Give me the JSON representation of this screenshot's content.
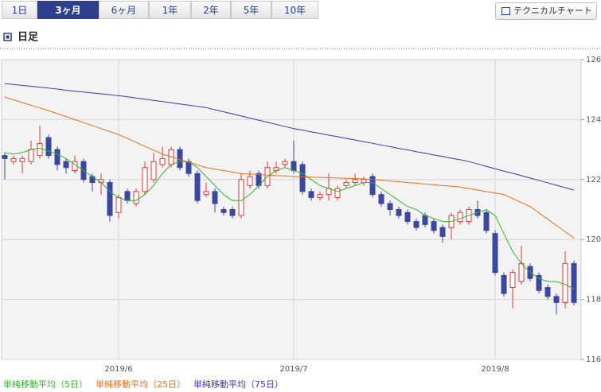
{
  "tabs": [
    "1日",
    "3ヶ月",
    "6ヶ月",
    "1年",
    "2年",
    "5年",
    "10年"
  ],
  "selected_tab": 1,
  "button": "テクニカルチャート",
  "chart_data": {
    "type": "candlestick",
    "title": "日足",
    "categories": [
      null,
      null,
      null,
      null,
      null,
      null,
      null,
      null,
      null,
      null,
      null,
      null,
      null,
      "2019/6",
      null,
      null,
      null,
      null,
      null,
      null,
      null,
      null,
      null,
      null,
      null,
      null,
      null,
      null,
      null,
      null,
      null,
      null,
      null,
      "2019/7",
      null,
      null,
      null,
      null,
      null,
      null,
      null,
      null,
      null,
      null,
      null,
      null,
      null,
      null,
      null,
      null,
      null,
      null,
      null,
      null,
      null,
      null,
      "2019/8",
      null,
      null,
      null,
      null,
      null,
      null,
      null,
      null,
      null
    ],
    "open": [
      122.8,
      122.6,
      122.6,
      122.6,
      122.8,
      123.4,
      123.0,
      122.6,
      122.3,
      122.6,
      122.1,
      121.9,
      121.9,
      120.9,
      121.6,
      121.2,
      121.6,
      122.0,
      122.5,
      122.5,
      123.0,
      122.6,
      122.2,
      121.5,
      121.6,
      121.0,
      121.0,
      120.8,
      121.8,
      122.2,
      121.8,
      122.3,
      122.5,
      122.6,
      122.5,
      121.6,
      121.4,
      121.5,
      121.4,
      121.8,
      121.9,
      121.9,
      122.1,
      121.5,
      121.2,
      121.0,
      120.9,
      120.6,
      120.8,
      120.6,
      120.4,
      120.4,
      120.6,
      120.6,
      121.0,
      120.9,
      120.2,
      118.8,
      118.4,
      118.6,
      119.1,
      118.8,
      118.4,
      118.1,
      117.9,
      119.2
    ],
    "high": [
      122.9,
      122.8,
      122.8,
      123.3,
      123.8,
      123.5,
      123.1,
      122.7,
      122.8,
      122.7,
      122.2,
      122.2,
      122.0,
      121.5,
      121.7,
      121.7,
      122.6,
      122.9,
      123.1,
      123.1,
      123.1,
      122.7,
      122.3,
      121.9,
      121.7,
      121.1,
      121.1,
      122.2,
      122.3,
      122.3,
      122.6,
      122.6,
      122.7,
      123.3,
      122.6,
      121.7,
      121.6,
      122.2,
      121.8,
      122.0,
      122.2,
      122.1,
      122.2,
      121.6,
      121.3,
      121.1,
      121.0,
      120.7,
      120.9,
      120.7,
      120.5,
      120.9,
      121.0,
      121.1,
      121.3,
      121.0,
      120.3,
      118.9,
      119.0,
      119.8,
      119.2,
      118.9,
      118.5,
      118.2,
      119.6,
      119.3
    ],
    "low": [
      122.0,
      122.5,
      122.2,
      122.5,
      122.7,
      122.7,
      122.3,
      122.2,
      122.2,
      121.9,
      121.6,
      121.5,
      120.6,
      120.7,
      121.2,
      121.1,
      121.5,
      121.9,
      122.4,
      122.4,
      122.3,
      122.1,
      121.2,
      121.4,
      120.9,
      120.8,
      120.7,
      120.7,
      121.7,
      121.7,
      121.7,
      122.2,
      122.4,
      122.2,
      121.5,
      121.3,
      121.3,
      121.3,
      121.3,
      121.7,
      121.8,
      121.8,
      121.4,
      121.1,
      120.8,
      120.7,
      120.5,
      120.3,
      120.4,
      120.2,
      119.9,
      120.0,
      120.5,
      120.5,
      120.7,
      120.2,
      118.8,
      118.1,
      117.7,
      118.5,
      118.6,
      118.2,
      118.0,
      117.5,
      117.7,
      117.8
    ],
    "close": [
      122.7,
      122.7,
      122.7,
      123.0,
      123.2,
      122.8,
      122.5,
      122.4,
      122.6,
      122.0,
      121.9,
      122.0,
      120.8,
      121.4,
      121.3,
      121.6,
      122.4,
      122.6,
      122.7,
      123.0,
      122.4,
      122.2,
      121.3,
      121.6,
      121.2,
      120.9,
      120.8,
      122.0,
      122.1,
      121.8,
      122.4,
      122.4,
      122.6,
      122.3,
      121.6,
      121.4,
      121.5,
      121.7,
      121.7,
      121.9,
      122.0,
      122.0,
      121.5,
      121.2,
      121.0,
      120.8,
      120.6,
      120.4,
      120.5,
      120.3,
      120.1,
      120.8,
      120.9,
      121.0,
      120.8,
      120.3,
      118.9,
      118.2,
      118.9,
      119.2,
      118.7,
      118.3,
      118.1,
      117.9,
      119.2,
      117.9
    ],
    "up_color": "#e2383a",
    "down_color": "#3c479f",
    "series": [
      {
        "name": "単純移動平均（5日）",
        "color": "#36b52f",
        "values": [
          122.9,
          122.85,
          122.9,
          123.0,
          123.05,
          122.95,
          122.85,
          122.7,
          122.5,
          122.3,
          122.1,
          121.9,
          121.6,
          121.4,
          121.3,
          121.3,
          121.5,
          121.8,
          122.2,
          122.5,
          122.6,
          122.6,
          122.4,
          122.1,
          121.8,
          121.5,
          121.3,
          121.3,
          121.5,
          121.8,
          122.1,
          122.3,
          122.4,
          122.3,
          122.2,
          122.0,
          121.8,
          121.7,
          121.6,
          121.7,
          121.8,
          121.9,
          121.9,
          121.7,
          121.5,
          121.3,
          121.1,
          121.0,
          120.8,
          120.7,
          120.6,
          120.6,
          120.7,
          120.8,
          120.9,
          121.0,
          120.8,
          120.2,
          119.6,
          119.2,
          118.9,
          118.7,
          118.6,
          118.6,
          118.5,
          118.35
        ]
      },
      {
        "name": "単純移動平均（25日）",
        "color": "#e8701a",
        "values": [
          124.75,
          124.66,
          124.57,
          124.48,
          124.39,
          124.3,
          124.2,
          124.1,
          124.0,
          123.9,
          123.8,
          123.7,
          123.6,
          123.5,
          123.37,
          123.24,
          123.11,
          122.98,
          122.85,
          122.76,
          122.67,
          122.58,
          122.49,
          122.4,
          122.35,
          122.3,
          122.25,
          122.2,
          122.18,
          122.17,
          122.15,
          122.13,
          122.12,
          122.1,
          122.09,
          122.08,
          122.07,
          122.06,
          122.05,
          122.04,
          122.03,
          122.02,
          122.0,
          121.98,
          121.95,
          121.93,
          121.9,
          121.88,
          121.85,
          121.83,
          121.8,
          121.78,
          121.75,
          121.7,
          121.65,
          121.6,
          121.55,
          121.5,
          121.37,
          121.23,
          121.1,
          120.89,
          120.68,
          120.47,
          120.26,
          120.05
        ]
      },
      {
        "name": "単純移動平均（75日）",
        "color": "#4a2fb0",
        "values": [
          125.2,
          125.17,
          125.14,
          125.11,
          125.08,
          125.05,
          125.02,
          124.98,
          124.95,
          124.92,
          124.89,
          124.86,
          124.83,
          124.8,
          124.76,
          124.72,
          124.68,
          124.64,
          124.6,
          124.56,
          124.52,
          124.48,
          124.44,
          124.4,
          124.33,
          124.26,
          124.19,
          124.12,
          124.05,
          123.98,
          123.91,
          123.84,
          123.77,
          123.7,
          123.65,
          123.59,
          123.54,
          123.48,
          123.43,
          123.37,
          123.32,
          123.26,
          123.21,
          123.15,
          123.1,
          123.04,
          122.99,
          122.93,
          122.88,
          122.82,
          122.77,
          122.71,
          122.66,
          122.6,
          122.52,
          122.44,
          122.36,
          122.28,
          122.21,
          122.13,
          122.05,
          121.97,
          121.89,
          121.81,
          121.73,
          121.65
        ]
      }
    ],
    "ylim": [
      116,
      126
    ],
    "yticks": [
      116,
      118,
      120,
      122,
      124,
      126
    ],
    "grid": true
  }
}
